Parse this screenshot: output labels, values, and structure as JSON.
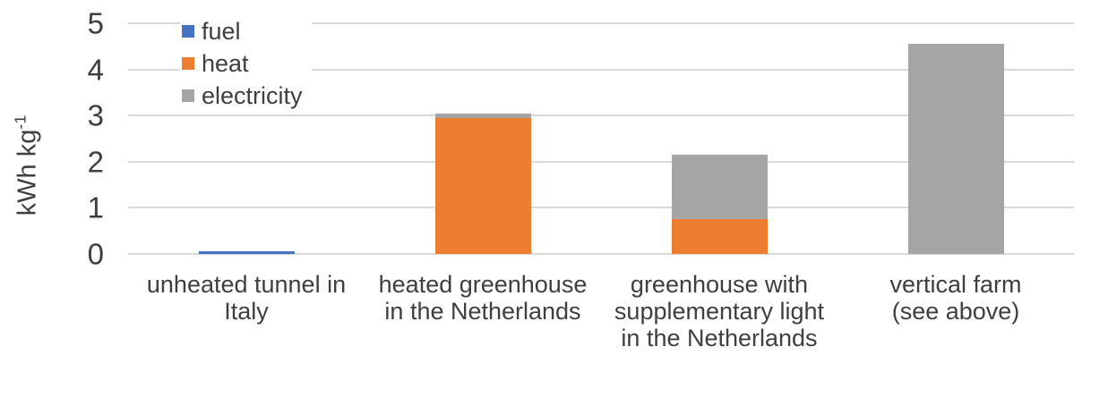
{
  "chart_data": {
    "type": "bar",
    "stacked": true,
    "title": "",
    "ylabel": "kWh kg⁻¹",
    "ylabel_base": "kWh kg",
    "ylabel_exponent": "-1",
    "xlabel": "",
    "ylim": [
      0,
      5
    ],
    "yticks": [
      0,
      1,
      2,
      3,
      4,
      5
    ],
    "grid": true,
    "legend_position": "top-left-inside",
    "categories": [
      "unheated tunnel in Italy",
      "heated greenhouse in the Netherlands",
      "greenhouse with supplementary light in the Netherlands",
      "vertical farm (see above)"
    ],
    "category_lines": [
      [
        "unheated tunnel in",
        "Italy"
      ],
      [
        "heated greenhouse",
        "in the Netherlands"
      ],
      [
        "greenhouse with",
        "supplementary light",
        "in the Netherlands"
      ],
      [
        "vertical farm",
        "(see above)"
      ]
    ],
    "series": [
      {
        "name": "fuel",
        "color": "#4472c4",
        "values": [
          0.05,
          0,
          0,
          0
        ]
      },
      {
        "name": "heat",
        "color": "#ed7d31",
        "values": [
          0,
          2.95,
          0.75,
          0
        ]
      },
      {
        "name": "electricity",
        "color": "#a5a5a5",
        "values": [
          0,
          0.1,
          1.4,
          4.55
        ]
      }
    ],
    "colors": {
      "gridline": "#d9d9d9",
      "text": "#3f3f3f",
      "background": "#ffffff"
    }
  }
}
